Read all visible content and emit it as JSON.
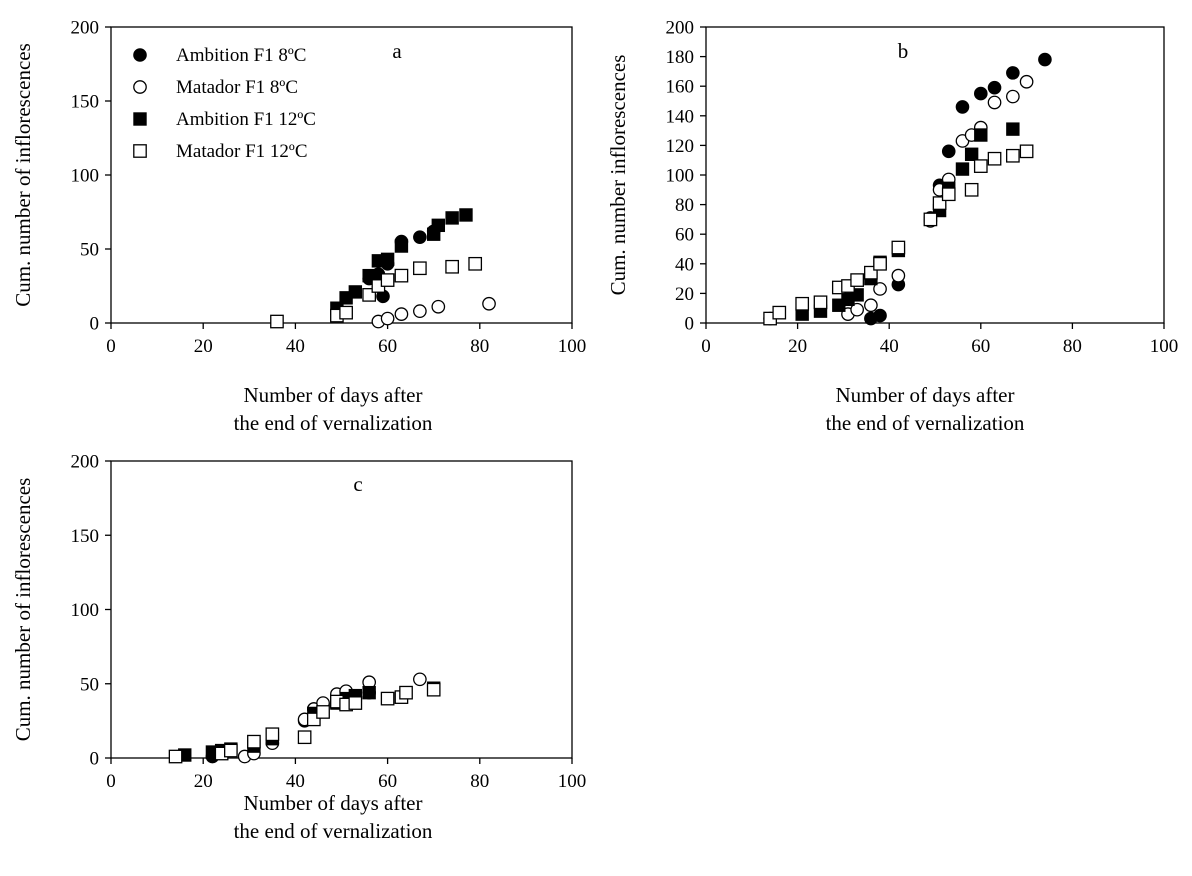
{
  "chart_data": [
    {
      "type": "scatter",
      "panel_label": "a",
      "ylabel": "Cum. number of inflorescences",
      "xlabel": [
        "Number of days after",
        "the end of vernalization"
      ],
      "xlim": [
        0,
        100
      ],
      "ylim": [
        0,
        200
      ],
      "xticks": [
        0,
        20,
        40,
        60,
        80,
        100
      ],
      "yticks": [
        0,
        50,
        100,
        150,
        200
      ],
      "grid": false,
      "legend": {
        "placement": "top-left",
        "entries": [
          {
            "marker": "filled-circle",
            "label": "Ambition F1 8ºC"
          },
          {
            "marker": "open-circle",
            "label": "Matador F1 8ºC"
          },
          {
            "marker": "filled-square",
            "label": "Ambition F1 12ºC"
          },
          {
            "marker": "open-square",
            "label": "Matador F1 12ºC"
          }
        ]
      },
      "series": [
        {
          "name": "Ambition F1 8ºC",
          "marker": "filled-circle",
          "points": [
            [
              56,
              30
            ],
            [
              58,
              33
            ],
            [
              59,
              18
            ],
            [
              60,
              40
            ],
            [
              63,
              55
            ],
            [
              67,
              58
            ],
            [
              70,
              62
            ]
          ]
        },
        {
          "name": "Matador F1 8ºC",
          "marker": "open-circle",
          "points": [
            [
              58,
              1
            ],
            [
              60,
              3
            ],
            [
              63,
              6
            ],
            [
              67,
              8
            ],
            [
              71,
              11
            ],
            [
              82,
              13
            ]
          ]
        },
        {
          "name": "Ambition F1 12ºC",
          "marker": "filled-square",
          "points": [
            [
              49,
              10
            ],
            [
              51,
              17
            ],
            [
              53,
              21
            ],
            [
              56,
              32
            ],
            [
              58,
              42
            ],
            [
              60,
              43
            ],
            [
              63,
              52
            ],
            [
              70,
              60
            ],
            [
              71,
              66
            ],
            [
              74,
              71
            ],
            [
              77,
              73
            ]
          ]
        },
        {
          "name": "Matador F1 12ºC",
          "marker": "open-square",
          "points": [
            [
              36,
              1
            ],
            [
              49,
              5
            ],
            [
              51,
              7
            ],
            [
              56,
              19
            ],
            [
              58,
              25
            ],
            [
              60,
              29
            ],
            [
              63,
              32
            ],
            [
              67,
              37
            ],
            [
              74,
              38
            ],
            [
              79,
              40
            ]
          ]
        }
      ]
    },
    {
      "type": "scatter",
      "panel_label": "b",
      "ylabel": "Cum. number inflorescences",
      "xlabel": [
        "Number of days after",
        "the end of vernalization"
      ],
      "xlim": [
        0,
        100
      ],
      "ylim": [
        0,
        200
      ],
      "xticks": [
        0,
        20,
        40,
        60,
        80,
        100
      ],
      "yticks": [
        0,
        20,
        40,
        60,
        80,
        100,
        120,
        140,
        160,
        180,
        200
      ],
      "grid": false,
      "series": [
        {
          "name": "Ambition F1 8ºC",
          "marker": "filled-circle",
          "points": [
            [
              36,
              3
            ],
            [
              38,
              5
            ],
            [
              42,
              26
            ],
            [
              49,
              71
            ],
            [
              51,
              93
            ],
            [
              53,
              116
            ],
            [
              56,
              146
            ],
            [
              60,
              155
            ],
            [
              63,
              159
            ],
            [
              67,
              169
            ],
            [
              74,
              178
            ]
          ]
        },
        {
          "name": "Matador F1 8ºC",
          "marker": "open-circle",
          "points": [
            [
              14,
              3
            ],
            [
              31,
              6
            ],
            [
              33,
              9
            ],
            [
              36,
              12
            ],
            [
              38,
              23
            ],
            [
              42,
              32
            ],
            [
              49,
              69
            ],
            [
              51,
              90
            ],
            [
              53,
              97
            ],
            [
              56,
              123
            ],
            [
              58,
              127
            ],
            [
              60,
              132
            ],
            [
              63,
              149
            ],
            [
              67,
              153
            ],
            [
              70,
              163
            ]
          ]
        },
        {
          "name": "Ambition F1 12ºC",
          "marker": "filled-square",
          "points": [
            [
              21,
              6
            ],
            [
              25,
              8
            ],
            [
              29,
              12
            ],
            [
              31,
              16
            ],
            [
              33,
              19
            ],
            [
              36,
              30
            ],
            [
              38,
              41
            ],
            [
              42,
              49
            ],
            [
              51,
              76
            ],
            [
              53,
              91
            ],
            [
              56,
              104
            ],
            [
              58,
              114
            ],
            [
              60,
              127
            ],
            [
              67,
              131
            ]
          ]
        },
        {
          "name": "Matador F1 12ºC",
          "marker": "open-square",
          "points": [
            [
              14,
              3
            ],
            [
              16,
              7
            ],
            [
              21,
              13
            ],
            [
              25,
              14
            ],
            [
              29,
              24
            ],
            [
              31,
              25
            ],
            [
              33,
              29
            ],
            [
              36,
              34
            ],
            [
              38,
              40
            ],
            [
              42,
              51
            ],
            [
              49,
              70
            ],
            [
              51,
              81
            ],
            [
              53,
              87
            ],
            [
              58,
              90
            ],
            [
              60,
              106
            ],
            [
              63,
              111
            ],
            [
              67,
              113
            ],
            [
              70,
              116
            ]
          ]
        }
      ]
    },
    {
      "type": "scatter",
      "panel_label": "c",
      "ylabel": "Cum. number of inflorescences",
      "xlabel": [
        "Number of days after",
        "the end of vernalization"
      ],
      "xlim": [
        0,
        100
      ],
      "ylim": [
        0,
        200
      ],
      "xticks": [
        0,
        20,
        40,
        60,
        80,
        100
      ],
      "yticks": [
        0,
        50,
        100,
        150,
        200
      ],
      "grid": false,
      "series": [
        {
          "name": "Ambition F1 8ºC",
          "marker": "filled-circle",
          "points": [
            [
              22,
              1
            ],
            [
              42,
              25
            ],
            [
              44,
              33
            ],
            [
              46,
              36
            ],
            [
              49,
              38
            ],
            [
              51,
              40
            ],
            [
              56,
              44
            ]
          ]
        },
        {
          "name": "Matador F1 8ºC",
          "marker": "open-circle",
          "points": [
            [
              29,
              1
            ],
            [
              31,
              3
            ],
            [
              35,
              10
            ],
            [
              42,
              26
            ],
            [
              44,
              33
            ],
            [
              46,
              37
            ],
            [
              49,
              43
            ],
            [
              51,
              45
            ],
            [
              56,
              51
            ],
            [
              67,
              53
            ]
          ]
        },
        {
          "name": "Ambition F1 12ºC",
          "marker": "filled-square",
          "points": [
            [
              16,
              2
            ],
            [
              22,
              4
            ],
            [
              24,
              5
            ],
            [
              26,
              6
            ],
            [
              31,
              8
            ],
            [
              35,
              13
            ],
            [
              44,
              30
            ],
            [
              49,
              37
            ],
            [
              51,
              40
            ],
            [
              53,
              42
            ],
            [
              56,
              44
            ],
            [
              70,
              47
            ]
          ]
        },
        {
          "name": "Matador F1 12ºC",
          "marker": "open-square",
          "points": [
            [
              14,
              1
            ],
            [
              24,
              3
            ],
            [
              26,
              5
            ],
            [
              31,
              11
            ],
            [
              35,
              16
            ],
            [
              42,
              14
            ],
            [
              44,
              26
            ],
            [
              46,
              31
            ],
            [
              49,
              38
            ],
            [
              51,
              36
            ],
            [
              53,
              37
            ],
            [
              60,
              40
            ],
            [
              63,
              41
            ],
            [
              64,
              44
            ],
            [
              70,
              46
            ]
          ]
        }
      ]
    }
  ]
}
